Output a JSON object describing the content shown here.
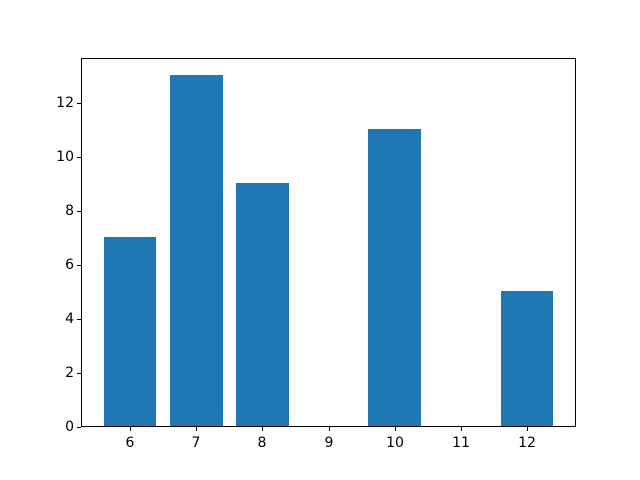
{
  "figure": {
    "background": "#ffffff",
    "spine_color": "#000000",
    "tick_label_color": "#000000"
  },
  "chart_data": {
    "type": "bar",
    "title": "",
    "xlabel": "",
    "ylabel": "",
    "x": [
      6,
      7,
      8,
      9,
      10,
      11,
      12
    ],
    "values": [
      7,
      13,
      9,
      0,
      11,
      0,
      5
    ],
    "bar_width": 0.8,
    "bar_color": "#1f77b4",
    "xlim": [
      5.26,
      12.74
    ],
    "ylim": [
      0,
      13.65
    ],
    "xticks": [
      "6",
      "7",
      "8",
      "9",
      "10",
      "11",
      "12"
    ],
    "xtick_values": [
      6,
      7,
      8,
      9,
      10,
      11,
      12
    ],
    "yticks": [
      "0",
      "2",
      "4",
      "6",
      "8",
      "10",
      "12"
    ],
    "ytick_values": [
      0,
      2,
      4,
      6,
      8,
      10,
      12
    ],
    "grid": false,
    "legend_position": "none"
  }
}
